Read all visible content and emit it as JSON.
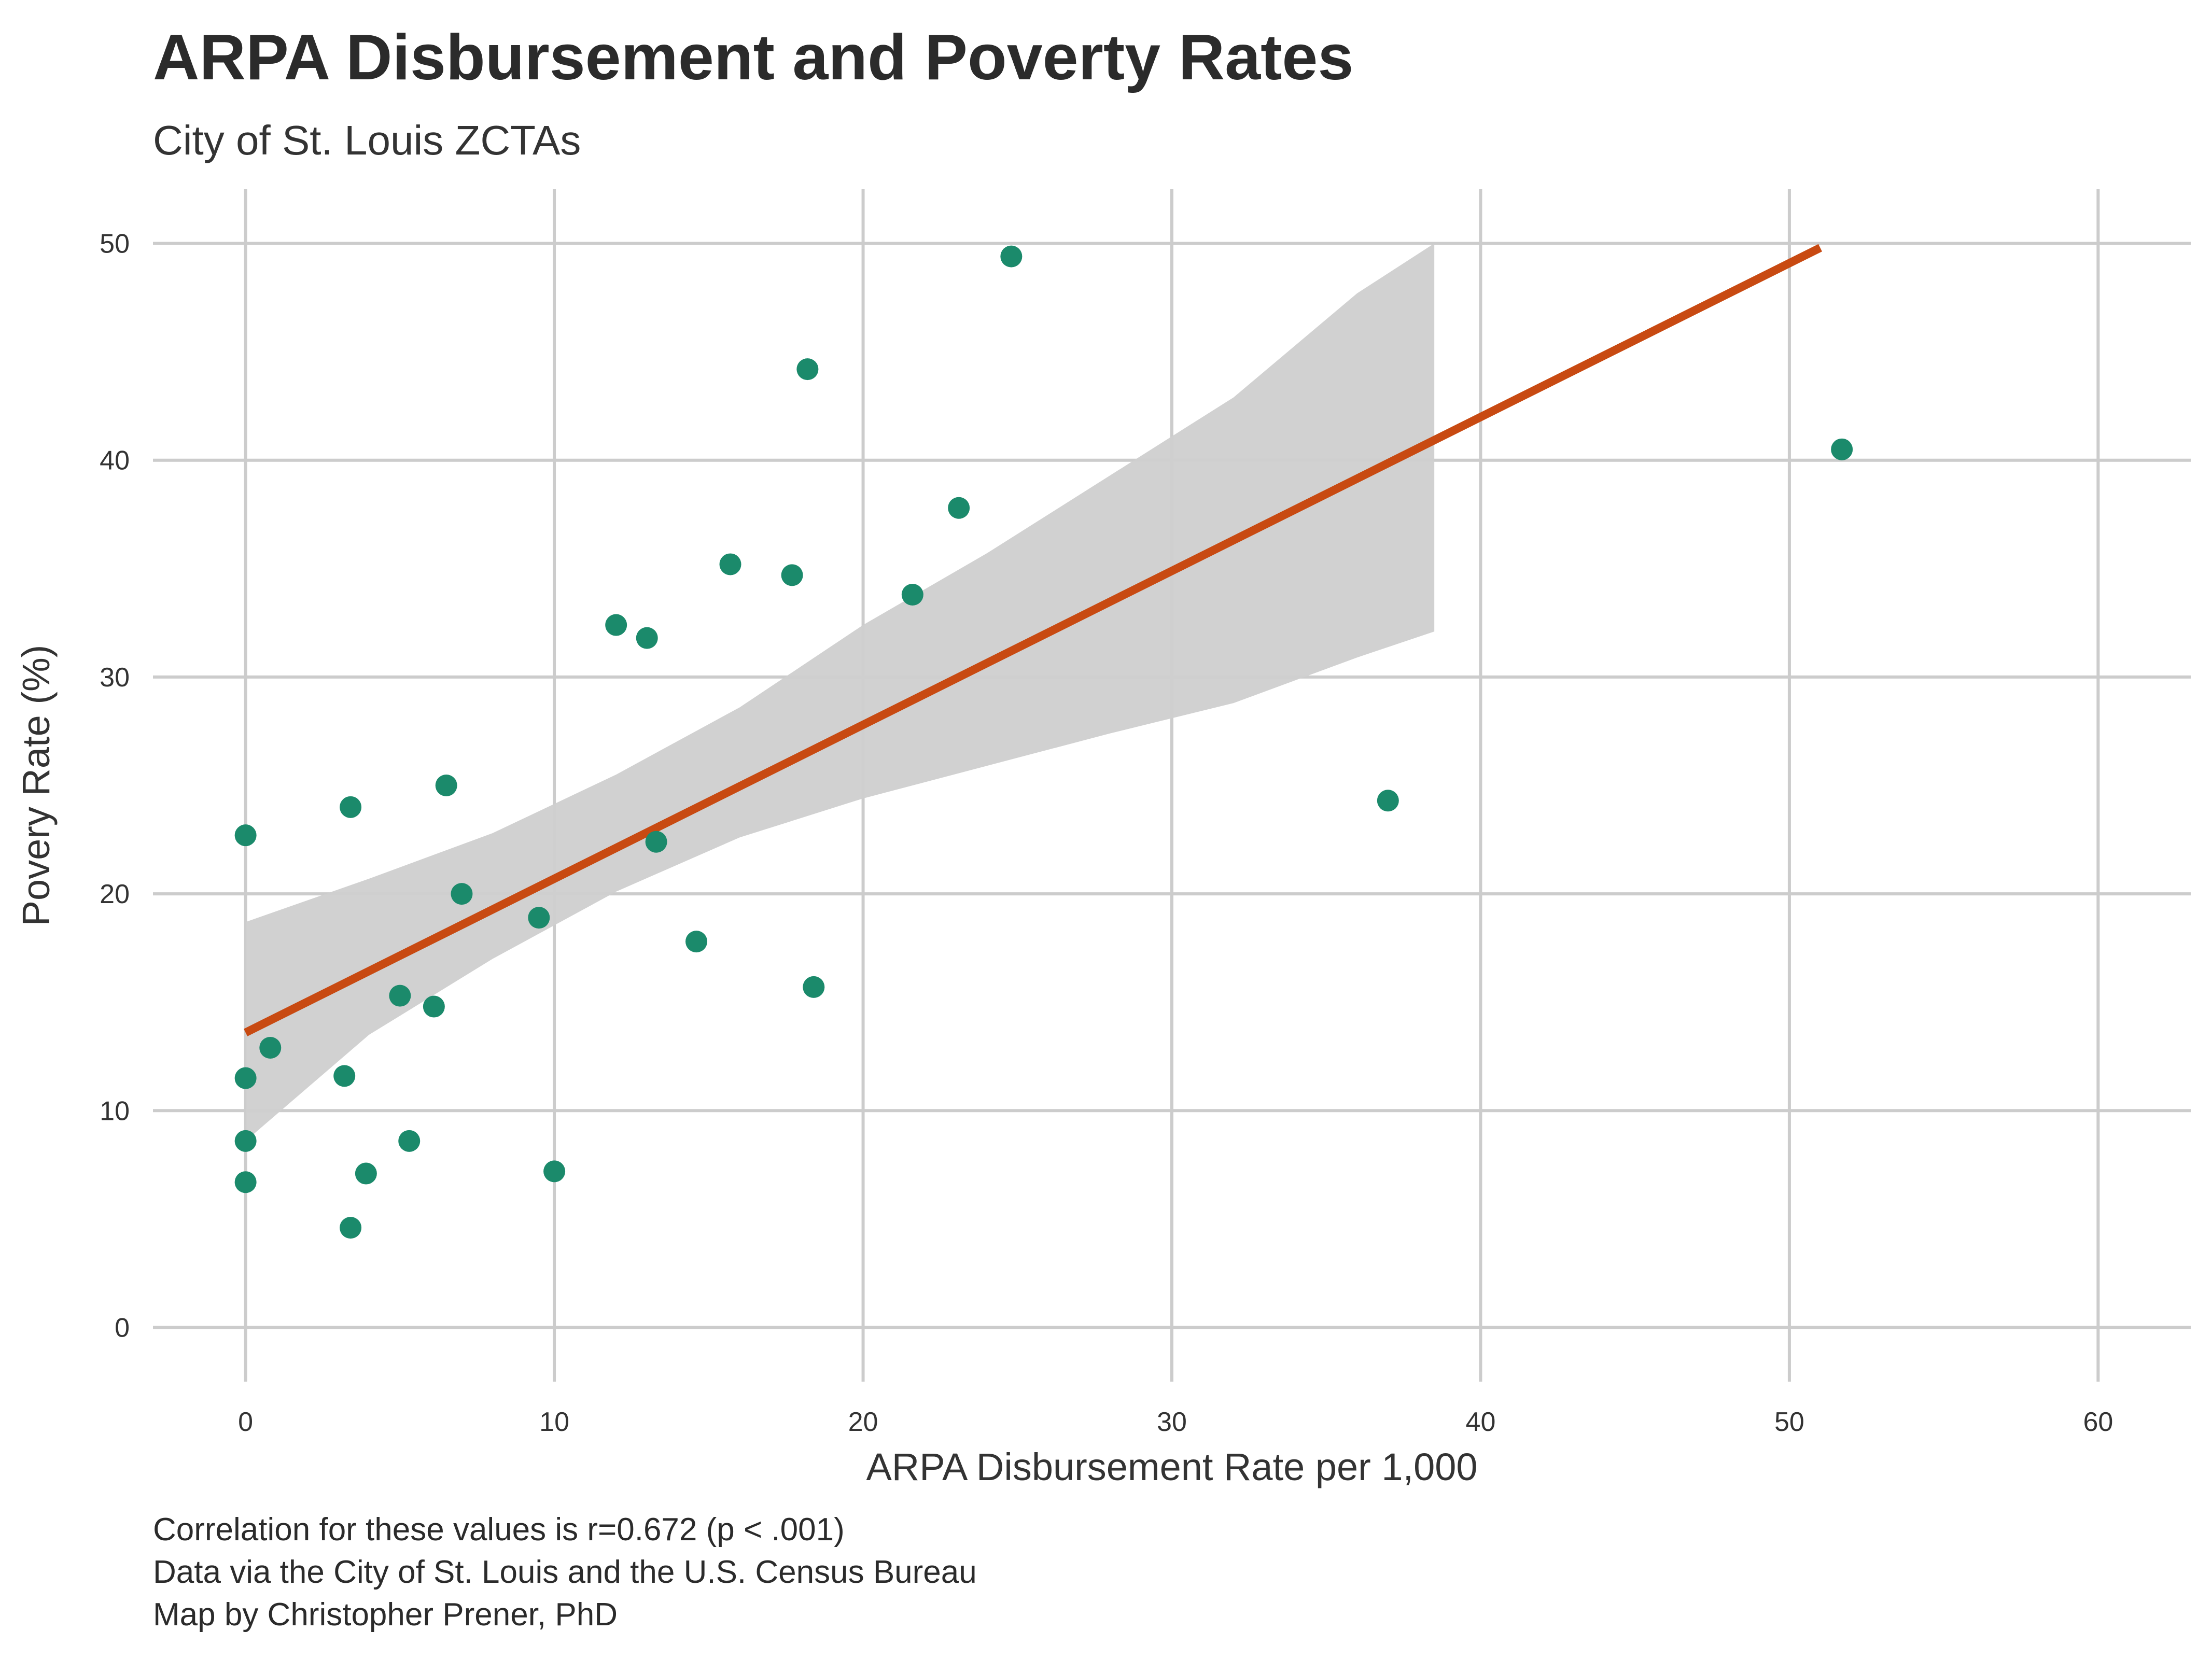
{
  "header": {
    "title": "ARPA Disbursement and Poverty Rates",
    "subtitle": "City of St. Louis ZCTAs"
  },
  "caption": {
    "line1": "Correlation for these values is r=0.672 (p < .001)",
    "line2": "Data via the City of St. Louis and the U.S. Census Bureau",
    "line3": "Map by Christopher Prener, PhD"
  },
  "colors": {
    "points": "#1b8a6b",
    "fit_line": "#c84a12",
    "ci_band": "#cfcfcf",
    "grid": "#cccccc"
  },
  "chart_data": {
    "type": "scatter",
    "title": "ARPA Disbursement and Poverty Rates",
    "subtitle": "City of St. Louis ZCTAs",
    "xlabel": "ARPA Disbursement Rate per 1,000",
    "ylabel": "Povery Rate (%)",
    "xlim": [
      -3,
      63
    ],
    "ylim": [
      -2.5,
      52.5
    ],
    "xticks": [
      0,
      10,
      20,
      30,
      40,
      50,
      60
    ],
    "yticks": [
      0,
      10,
      20,
      30,
      40,
      50
    ],
    "grid": true,
    "legend": "none",
    "points": [
      {
        "x": 24.8,
        "y": 49.4
      },
      {
        "x": 18.2,
        "y": 44.2
      },
      {
        "x": 51.7,
        "y": 40.5
      },
      {
        "x": 23.1,
        "y": 37.8
      },
      {
        "x": 15.7,
        "y": 35.2
      },
      {
        "x": 17.7,
        "y": 34.7
      },
      {
        "x": 21.6,
        "y": 33.8
      },
      {
        "x": 12.0,
        "y": 32.4
      },
      {
        "x": 13.0,
        "y": 31.8
      },
      {
        "x": 6.5,
        "y": 25.0
      },
      {
        "x": 37.0,
        "y": 24.3
      },
      {
        "x": 3.4,
        "y": 24.0
      },
      {
        "x": 0.0,
        "y": 22.7
      },
      {
        "x": 13.3,
        "y": 22.4
      },
      {
        "x": 7.0,
        "y": 20.0
      },
      {
        "x": 9.5,
        "y": 18.9
      },
      {
        "x": 14.6,
        "y": 17.8
      },
      {
        "x": 18.4,
        "y": 15.7
      },
      {
        "x": 5.0,
        "y": 15.3
      },
      {
        "x": 6.1,
        "y": 14.8
      },
      {
        "x": 0.8,
        "y": 12.9
      },
      {
        "x": 3.2,
        "y": 11.6
      },
      {
        "x": 0.0,
        "y": 11.5
      },
      {
        "x": 0.0,
        "y": 8.6
      },
      {
        "x": 5.3,
        "y": 8.6
      },
      {
        "x": 3.9,
        "y": 7.1
      },
      {
        "x": 10.0,
        "y": 7.2
      },
      {
        "x": 0.0,
        "y": 6.7
      },
      {
        "x": 3.4,
        "y": 4.6
      }
    ],
    "fit_line": {
      "x": [
        0,
        51
      ],
      "y": [
        13.6,
        49.8
      ]
    },
    "confidence_band": {
      "x": [
        0,
        4,
        8,
        12,
        16,
        20,
        24,
        28,
        32,
        36,
        38.5
      ],
      "lower": [
        8.6,
        13.5,
        17.0,
        20.1,
        22.6,
        24.4,
        25.9,
        27.4,
        28.8,
        30.9,
        32.1
      ],
      "upper": [
        18.7,
        20.7,
        22.8,
        25.5,
        28.6,
        32.4,
        35.7,
        39.3,
        42.9,
        47.7,
        50.0
      ]
    }
  }
}
